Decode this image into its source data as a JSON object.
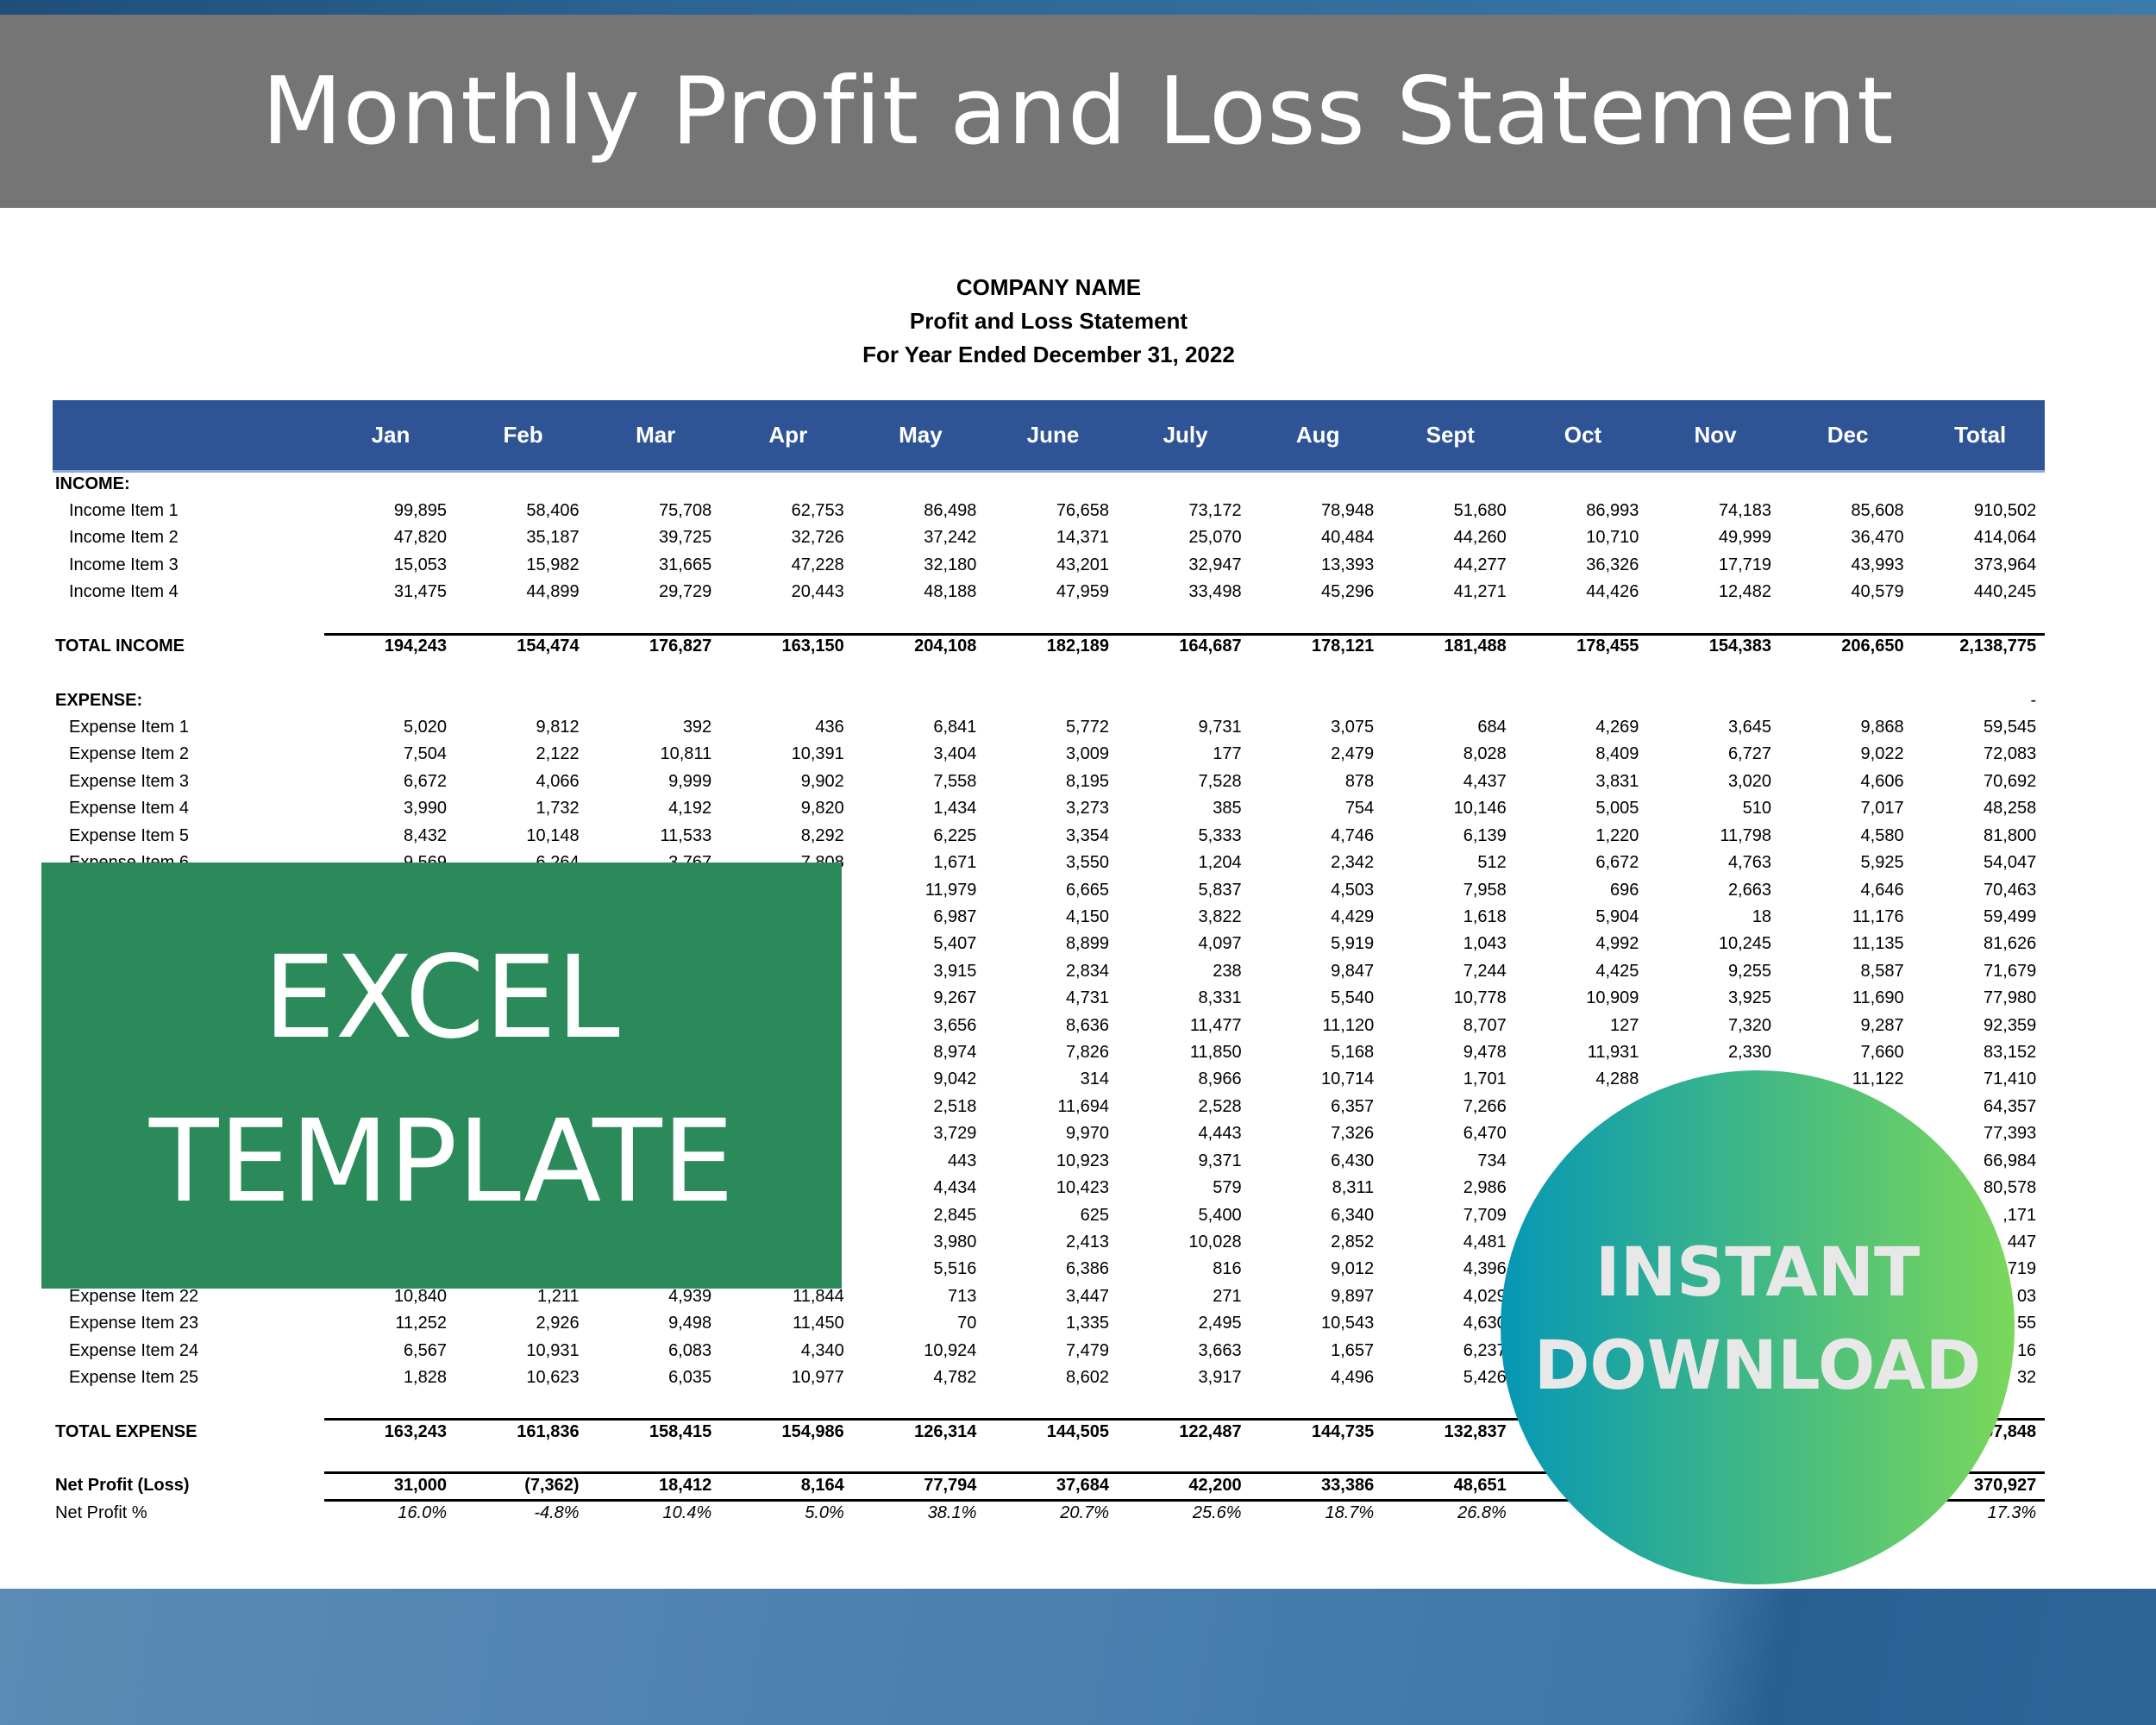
{
  "banner": {
    "title": "Monthly Profit and Loss Statement"
  },
  "statement": {
    "company": "COMPANY NAME",
    "subtitle": "Profit and Loss Statement",
    "period": "For Year Ended December 31, 2022"
  },
  "columns": [
    "Jan",
    "Feb",
    "Mar",
    "Apr",
    "May",
    "June",
    "July",
    "Aug",
    "Sept",
    "Oct",
    "Nov",
    "Dec",
    "Total"
  ],
  "income": {
    "label": "INCOME:",
    "items": [
      {
        "label": "Income Item 1",
        "values": [
          "99,895",
          "58,406",
          "75,708",
          "62,753",
          "86,498",
          "76,658",
          "73,172",
          "78,948",
          "51,680",
          "86,993",
          "74,183",
          "85,608",
          "910,502"
        ]
      },
      {
        "label": "Income Item 2",
        "values": [
          "47,820",
          "35,187",
          "39,725",
          "32,726",
          "37,242",
          "14,371",
          "25,070",
          "40,484",
          "44,260",
          "10,710",
          "49,999",
          "36,470",
          "414,064"
        ]
      },
      {
        "label": "Income Item 3",
        "values": [
          "15,053",
          "15,982",
          "31,665",
          "47,228",
          "32,180",
          "43,201",
          "32,947",
          "13,393",
          "44,277",
          "36,326",
          "17,719",
          "43,993",
          "373,964"
        ]
      },
      {
        "label": "Income Item 4",
        "values": [
          "31,475",
          "44,899",
          "29,729",
          "20,443",
          "48,188",
          "47,959",
          "33,498",
          "45,296",
          "41,271",
          "44,426",
          "12,482",
          "40,579",
          "440,245"
        ]
      }
    ],
    "total": {
      "label": "TOTAL INCOME",
      "values": [
        "194,243",
        "154,474",
        "176,827",
        "163,150",
        "204,108",
        "182,189",
        "164,687",
        "178,121",
        "181,488",
        "178,455",
        "154,383",
        "206,650",
        "2,138,775"
      ]
    }
  },
  "expense": {
    "label": "EXPENSE:",
    "header_total": "-",
    "items": [
      {
        "label": "Expense Item 1",
        "values": [
          "5,020",
          "9,812",
          "392",
          "436",
          "6,841",
          "5,772",
          "9,731",
          "3,075",
          "684",
          "4,269",
          "3,645",
          "9,868",
          "59,545"
        ]
      },
      {
        "label": "Expense Item 2",
        "values": [
          "7,504",
          "2,122",
          "10,811",
          "10,391",
          "3,404",
          "3,009",
          "177",
          "2,479",
          "8,028",
          "8,409",
          "6,727",
          "9,022",
          "72,083"
        ]
      },
      {
        "label": "Expense Item 3",
        "values": [
          "6,672",
          "4,066",
          "9,999",
          "9,902",
          "7,558",
          "8,195",
          "7,528",
          "878",
          "4,437",
          "3,831",
          "3,020",
          "4,606",
          "70,692"
        ]
      },
      {
        "label": "Expense Item 4",
        "values": [
          "3,990",
          "1,732",
          "4,192",
          "9,820",
          "1,434",
          "3,273",
          "385",
          "754",
          "10,146",
          "5,005",
          "510",
          "7,017",
          "48,258"
        ]
      },
      {
        "label": "Expense Item 5",
        "values": [
          "8,432",
          "10,148",
          "11,533",
          "8,292",
          "6,225",
          "3,354",
          "5,333",
          "4,746",
          "6,139",
          "1,220",
          "11,798",
          "4,580",
          "81,800"
        ]
      },
      {
        "label": "Expense Item 6",
        "values": [
          "9,569",
          "6,264",
          "3,767",
          "7,808",
          "1,671",
          "3,550",
          "1,204",
          "2,342",
          "512",
          "6,672",
          "4,763",
          "5,925",
          "54,047"
        ]
      },
      {
        "label": null,
        "values": [
          null,
          null,
          null,
          null,
          "11,979",
          "6,665",
          "5,837",
          "4,503",
          "7,958",
          "696",
          "2,663",
          "4,646",
          "70,463"
        ]
      },
      {
        "label": null,
        "values": [
          null,
          null,
          null,
          null,
          "6,987",
          "4,150",
          "3,822",
          "4,429",
          "1,618",
          "5,904",
          "18",
          "11,176",
          "59,499"
        ]
      },
      {
        "label": null,
        "values": [
          null,
          null,
          null,
          null,
          "5,407",
          "8,899",
          "4,097",
          "5,919",
          "1,043",
          "4,992",
          "10,245",
          "11,135",
          "81,626"
        ]
      },
      {
        "label": null,
        "values": [
          null,
          null,
          null,
          null,
          "3,915",
          "2,834",
          "238",
          "9,847",
          "7,244",
          "4,425",
          "9,255",
          "8,587",
          "71,679"
        ]
      },
      {
        "label": null,
        "values": [
          null,
          null,
          null,
          null,
          "9,267",
          "4,731",
          "8,331",
          "5,540",
          "10,778",
          "10,909",
          "3,925",
          "11,690",
          "77,980"
        ]
      },
      {
        "label": null,
        "values": [
          null,
          null,
          null,
          null,
          "3,656",
          "8,636",
          "11,477",
          "11,120",
          "8,707",
          "127",
          "7,320",
          "9,287",
          "92,359"
        ]
      },
      {
        "label": null,
        "values": [
          null,
          null,
          null,
          null,
          "8,974",
          "7,826",
          "11,850",
          "5,168",
          "9,478",
          "11,931",
          "2,330",
          "7,660",
          "83,152"
        ]
      },
      {
        "label": null,
        "values": [
          null,
          null,
          null,
          null,
          "9,042",
          "314",
          "8,966",
          "10,714",
          "1,701",
          "4,288",
          null,
          "11,122",
          "71,410"
        ]
      },
      {
        "label": null,
        "values": [
          null,
          null,
          null,
          null,
          "2,518",
          "11,694",
          "2,528",
          "6,357",
          "7,266",
          null,
          null,
          null,
          "64,357"
        ]
      },
      {
        "label": null,
        "values": [
          null,
          null,
          null,
          null,
          "3,729",
          "9,970",
          "4,443",
          "7,326",
          "6,470",
          null,
          null,
          null,
          "77,393"
        ]
      },
      {
        "label": null,
        "values": [
          null,
          null,
          null,
          null,
          "443",
          "10,923",
          "9,371",
          "6,430",
          "734",
          null,
          null,
          null,
          "66,984"
        ]
      },
      {
        "label": null,
        "values": [
          null,
          null,
          null,
          null,
          "4,434",
          "10,423",
          "579",
          "8,311",
          "2,986",
          null,
          null,
          null,
          "80,578"
        ]
      },
      {
        "label": null,
        "values": [
          null,
          null,
          null,
          null,
          "2,845",
          "625",
          "5,400",
          "6,340",
          "7,709",
          null,
          null,
          null,
          ",171"
        ]
      },
      {
        "label": null,
        "values": [
          null,
          null,
          null,
          null,
          "3,980",
          "2,413",
          "10,028",
          "2,852",
          "4,481",
          null,
          null,
          null,
          "447"
        ]
      },
      {
        "label": null,
        "values": [
          null,
          null,
          null,
          null,
          "5,516",
          "6,386",
          "816",
          "9,012",
          "4,396",
          null,
          null,
          null,
          "719"
        ]
      },
      {
        "label": "Expense Item 22",
        "values": [
          "10,840",
          "1,211",
          "4,939",
          "11,844",
          "713",
          "3,447",
          "271",
          "9,897",
          "4,029",
          null,
          null,
          null,
          "03"
        ]
      },
      {
        "label": "Expense Item 23",
        "values": [
          "11,252",
          "2,926",
          "9,498",
          "11,450",
          "70",
          "1,335",
          "2,495",
          "10,543",
          "4,630",
          null,
          null,
          null,
          "55"
        ]
      },
      {
        "label": "Expense Item 24",
        "values": [
          "6,567",
          "10,931",
          "6,083",
          "4,340",
          "10,924",
          "7,479",
          "3,663",
          "1,657",
          "6,237",
          null,
          null,
          null,
          "16"
        ]
      },
      {
        "label": "Expense Item 25",
        "values": [
          "1,828",
          "10,623",
          "6,035",
          "10,977",
          "4,782",
          "8,602",
          "3,917",
          "4,496",
          "5,426",
          null,
          null,
          null,
          "32"
        ]
      }
    ],
    "total": {
      "label": "TOTAL EXPENSE",
      "values": [
        "163,243",
        "161,836",
        "158,415",
        "154,986",
        "126,314",
        "144,505",
        "122,487",
        "144,735",
        "132,837",
        null,
        null,
        null,
        "1,767,848"
      ]
    }
  },
  "net_profit": {
    "label": "Net Profit (Loss)",
    "values": [
      "31,000",
      "(7,362)",
      "18,412",
      "8,164",
      "77,794",
      "37,684",
      "42,200",
      "33,386",
      "48,651",
      null,
      null,
      null,
      "370,927"
    ]
  },
  "net_profit_pct": {
    "label": "Net Profit %",
    "values": [
      "16.0%",
      "-4.8%",
      "10.4%",
      "5.0%",
      "38.1%",
      "20.7%",
      "25.6%",
      "18.7%",
      "26.8%",
      null,
      null,
      null,
      "17.3%"
    ]
  },
  "badges": {
    "excel_line1": "EXCEL",
    "excel_line2": "TEMPLATE",
    "download_line1": "INSTANT",
    "download_line2": "DOWNLOAD"
  },
  "colors": {
    "header_bar": "#2f5496",
    "banner": "#757575",
    "excel_badge": "#2a8a5a",
    "download_gradient": [
      "#0597b5",
      "#7ad85a"
    ]
  }
}
